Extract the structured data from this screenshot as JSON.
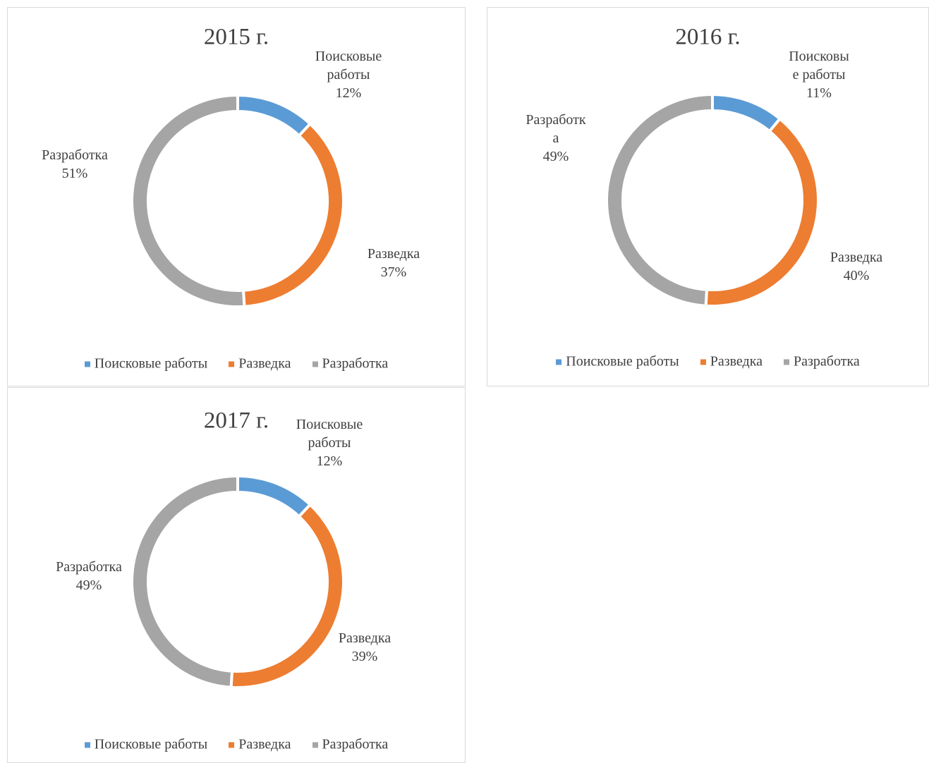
{
  "chart_data": [
    {
      "type": "pie",
      "title": "2015 г.",
      "categories": [
        "Поисковые работы",
        "Разведка",
        "Разработка"
      ],
      "values": [
        12,
        37,
        51
      ],
      "value_labels": [
        "12%",
        "37%",
        "51%"
      ],
      "colors": [
        "#5b9bd5",
        "#ed7d31",
        "#a5a5a5"
      ],
      "donut": true,
      "legend": "bottom"
    },
    {
      "type": "pie",
      "title": "2016 г.",
      "categories": [
        "Поисковые работы",
        "Разведка",
        "Разработка"
      ],
      "values": [
        11,
        40,
        49
      ],
      "value_labels": [
        "11%",
        "40%",
        "49%"
      ],
      "colors": [
        "#5b9bd5",
        "#ed7d31",
        "#a5a5a5"
      ],
      "donut": true,
      "legend": "bottom"
    },
    {
      "type": "pie",
      "title": "2017 г.",
      "categories": [
        "Поисковые работы",
        "Разведка",
        "Разработка"
      ],
      "values": [
        12,
        39,
        49
      ],
      "value_labels": [
        "12%",
        "39%",
        "49%"
      ],
      "colors": [
        "#5b9bd5",
        "#ed7d31",
        "#a5a5a5"
      ],
      "donut": true,
      "legend": "bottom"
    }
  ]
}
